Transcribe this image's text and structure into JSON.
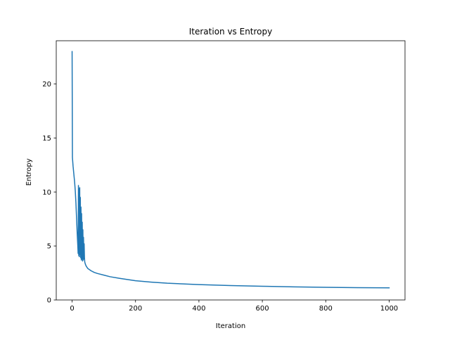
{
  "chart_data": {
    "type": "line",
    "title": "Iteration vs Entropy",
    "xlabel": "Iteration",
    "ylabel": "Entropy",
    "xlim": [
      -50,
      1050
    ],
    "ylim": [
      0,
      24
    ],
    "x_ticks": [
      0,
      200,
      400,
      600,
      800,
      1000
    ],
    "y_ticks": [
      0,
      5,
      10,
      15,
      20
    ],
    "grid": false,
    "legend": "none",
    "series": [
      {
        "color": "#1f77b4",
        "x": [
          0,
          1,
          2,
          3,
          5,
          8,
          10,
          12,
          14,
          16,
          18,
          19,
          20,
          21,
          22,
          23,
          24,
          25,
          26,
          27,
          28,
          29,
          30,
          31,
          32,
          33,
          34,
          35,
          36,
          37,
          38,
          39,
          40,
          42,
          45,
          50,
          60,
          70,
          80,
          100,
          120,
          150,
          200,
          250,
          300,
          400,
          500,
          600,
          700,
          800,
          900,
          1000
        ],
        "y": [
          23.0,
          13.2,
          12.8,
          12.4,
          11.8,
          10.9,
          10.1,
          9.0,
          7.6,
          6.2,
          5.0,
          4.3,
          10.6,
          4.1,
          10.3,
          4.0,
          10.4,
          4.2,
          9.5,
          3.9,
          8.6,
          3.7,
          8.0,
          3.8,
          7.2,
          3.6,
          6.5,
          3.7,
          5.8,
          3.8,
          5.2,
          3.9,
          3.5,
          3.3,
          3.1,
          2.9,
          2.7,
          2.55,
          2.45,
          2.3,
          2.15,
          2.0,
          1.78,
          1.65,
          1.55,
          1.42,
          1.33,
          1.27,
          1.21,
          1.17,
          1.14,
          1.12
        ]
      }
    ]
  }
}
